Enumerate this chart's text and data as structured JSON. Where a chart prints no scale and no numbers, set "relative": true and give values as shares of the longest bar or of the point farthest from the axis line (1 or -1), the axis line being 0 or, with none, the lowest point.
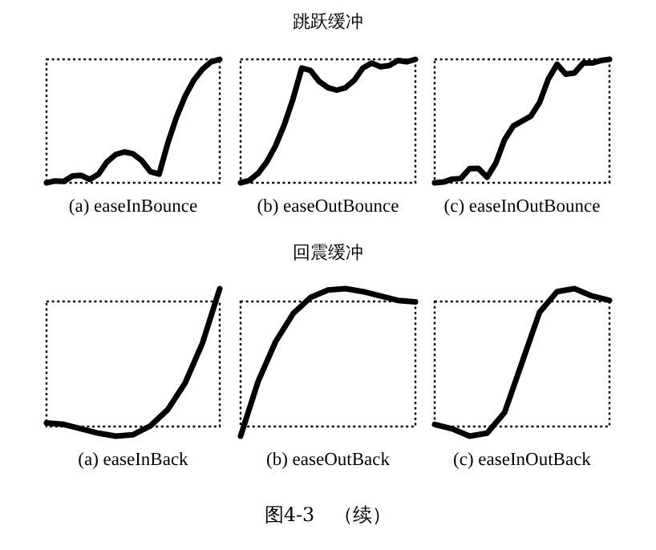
{
  "chart_data": [
    {
      "type": "line",
      "relative": true,
      "color": "#000000",
      "xlabel": "(a) easeInBounce",
      "categories": [
        null,
        null,
        null,
        null,
        null,
        null,
        null,
        null,
        null,
        null,
        null,
        null,
        null,
        null,
        null,
        null,
        null,
        null,
        null,
        null,
        null
      ],
      "values": [
        0,
        0.015,
        0.012,
        0.055,
        0.06,
        0.027,
        0.07,
        0.17,
        0.23,
        0.25,
        0.234,
        0.18,
        0.09,
        0.07,
        0.32,
        0.53,
        0.7,
        0.83,
        0.92,
        0.98,
        1
      ]
    },
    {
      "type": "line",
      "relative": true,
      "color": "#000000",
      "title": "跳跃缓冲",
      "xlabel": "(b) easeOutBounce",
      "categories": [
        null,
        null,
        null,
        null,
        null,
        null,
        null,
        null,
        null,
        null,
        null,
        null,
        null,
        null,
        null,
        null,
        null,
        null,
        null,
        null,
        null
      ],
      "values": [
        0,
        0.019,
        0.076,
        0.17,
        0.3,
        0.47,
        0.68,
        0.93,
        0.91,
        0.82,
        0.77,
        0.75,
        0.77,
        0.83,
        0.93,
        0.97,
        0.94,
        0.95,
        0.99,
        0.98,
        1
      ]
    },
    {
      "type": "line",
      "relative": true,
      "color": "#000000",
      "xlabel": "(c) easeInOutBounce",
      "categories": [
        null,
        null,
        null,
        null,
        null,
        null,
        null,
        null,
        null,
        null,
        null,
        null,
        null,
        null,
        null,
        null,
        null,
        null,
        null,
        null,
        null
      ],
      "values": [
        0,
        0.006,
        0.03,
        0.035,
        0.115,
        0.117,
        0.045,
        0.16,
        0.35,
        0.46,
        0.5,
        0.54,
        0.65,
        0.84,
        0.96,
        0.88,
        0.89,
        0.97,
        0.97,
        0.99,
        1
      ]
    },
    {
      "type": "line",
      "relative": true,
      "color": "#000000",
      "xlabel": "(a) easeInBack",
      "categories": [
        null,
        null,
        null,
        null,
        null,
        null,
        null,
        null,
        null,
        null,
        null
      ],
      "values": [
        0.09,
        0.08,
        0.05,
        0.02,
        0,
        0.01,
        0.07,
        0.18,
        0.36,
        0.63,
        1
      ]
    },
    {
      "type": "line",
      "relative": true,
      "color": "#000000",
      "title": "回震缓冲",
      "xlabel": "(b) easeOutBack",
      "annotations": [
        "图4-3　（续）"
      ],
      "categories": [
        null,
        null,
        null,
        null,
        null,
        null,
        null,
        null,
        null,
        null,
        null
      ],
      "values": [
        0,
        0.37,
        0.64,
        0.83,
        0.94,
        0.99,
        1,
        0.98,
        0.95,
        0.92,
        0.91
      ]
    },
    {
      "type": "line",
      "relative": true,
      "color": "#000000",
      "xlabel": "(c) easeInOutBack",
      "categories": [
        null,
        null,
        null,
        null,
        null,
        null,
        null,
        null,
        null,
        null,
        null
      ],
      "values": [
        0.08,
        0.05,
        0,
        0.02,
        0.16,
        0.5,
        0.84,
        0.98,
        1,
        0.95,
        0.92
      ]
    }
  ]
}
